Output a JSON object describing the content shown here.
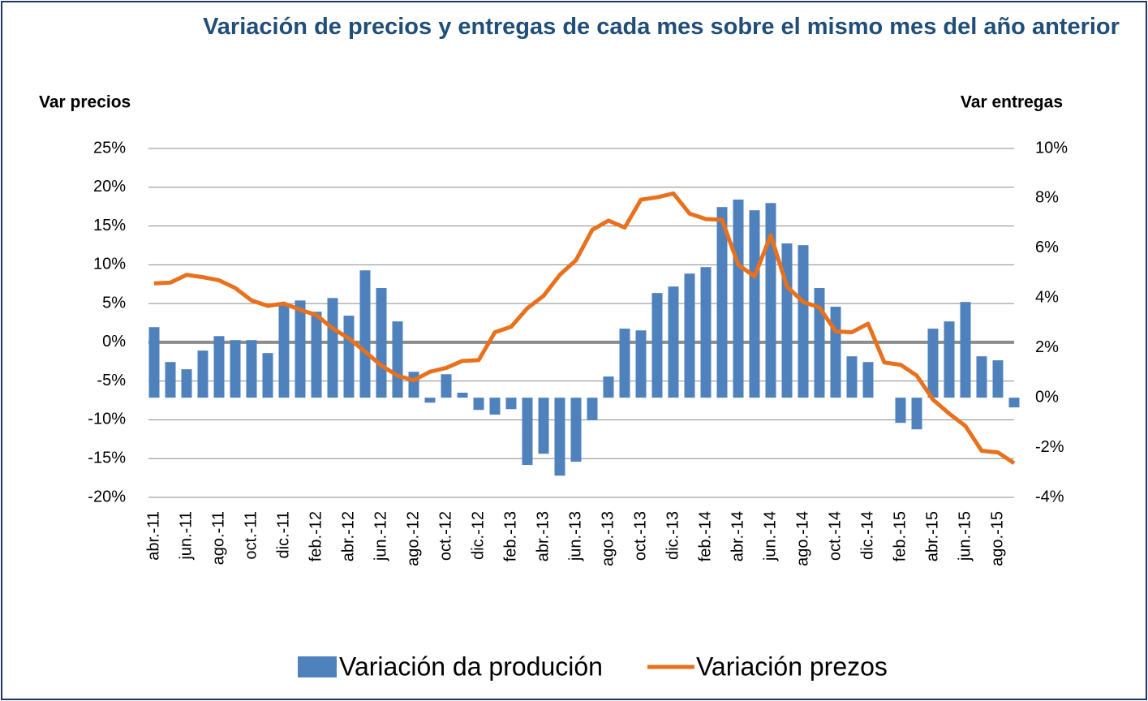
{
  "chart_data": {
    "type": "bar-line",
    "title": "Variación de precios y entregas de cada mes sobre el mismo mes del año anterior",
    "y_label": "Var precios",
    "y2_label": "Var entregas",
    "categories": [
      "abr.-11",
      null,
      "jun.-11",
      null,
      "ago.-11",
      null,
      "oct.-11",
      null,
      "dic.-11",
      null,
      "feb.-12",
      null,
      "abr.-12",
      null,
      "jun.-12",
      null,
      "ago.-12",
      null,
      "oct.-12",
      null,
      "dic.-12",
      null,
      "feb.-13",
      null,
      "abr.-13",
      null,
      "jun.-13",
      null,
      "ago.-13",
      null,
      "oct.-13",
      null,
      "dic.-13",
      null,
      "feb.-14",
      null,
      "abr.-14",
      null,
      "jun.-14",
      null,
      "ago.-14",
      null,
      "oct.-14",
      null,
      "dic.-14",
      null,
      "feb.-15",
      null,
      "abr.-15",
      null,
      "jun.-15",
      null,
      "ago.-15",
      null
    ],
    "series": [
      {
        "name": "Variación da produción",
        "type": "bar",
        "axis": "y2",
        "color": "#4f81bd",
        "values": [
          2.83,
          1.43,
          1.14,
          1.89,
          2.47,
          2.31,
          2.31,
          1.79,
          3.74,
          3.9,
          3.45,
          4.0,
          3.29,
          5.11,
          4.4,
          3.06,
          1.04,
          -0.2,
          0.94,
          0.2,
          -0.49,
          -0.68,
          -0.46,
          -2.7,
          -2.25,
          -3.13,
          -2.57,
          -0.91,
          0.85,
          2.77,
          2.7,
          4.2,
          4.46,
          4.98,
          5.24,
          7.65,
          7.95,
          7.52,
          7.81,
          6.19,
          6.12,
          4.4,
          3.65,
          1.66,
          1.43,
          0,
          -1.01,
          -1.27,
          2.77,
          3.06,
          3.84,
          1.66,
          1.5,
          -0.39
        ]
      },
      {
        "name": "Variación prezos",
        "type": "line",
        "axis": "y",
        "color": "#e8711d",
        "values": [
          7.6,
          7.7,
          8.7,
          8.4,
          8.0,
          7.0,
          5.4,
          4.7,
          5.0,
          4.2,
          3.5,
          1.8,
          0.5,
          -1.2,
          -3.0,
          -4.3,
          -4.9,
          -3.8,
          -3.3,
          -2.4,
          -2.3,
          1.3,
          2.0,
          4.4,
          6.0,
          8.7,
          10.6,
          14.5,
          15.7,
          14.8,
          18.4,
          18.7,
          19.2,
          16.6,
          15.9,
          15.8,
          10.0,
          8.5,
          13.8,
          7.2,
          5.2,
          4.5,
          1.4,
          1.3,
          2.4,
          -2.6,
          -2.9,
          -4.3,
          -7.4,
          -9.2,
          -10.8,
          -14.0,
          -14.2,
          -15.6
        ]
      }
    ],
    "ylim": [
      -20,
      25
    ],
    "yticks": [
      {
        "value": -20,
        "label": "-20%"
      },
      {
        "value": -15,
        "label": "-15%"
      },
      {
        "value": -10,
        "label": "-10%"
      },
      {
        "value": -5,
        "label": "-5%"
      },
      {
        "value": 0,
        "label": "0%"
      },
      {
        "value": 5,
        "label": "5%"
      },
      {
        "value": 10,
        "label": "10%"
      },
      {
        "value": 15,
        "label": "15%"
      },
      {
        "value": 20,
        "label": "20%"
      },
      {
        "value": 25,
        "label": "25%"
      }
    ],
    "y2lim": [
      -4,
      10
    ],
    "y2ticks": [
      {
        "value": -4,
        "label": "-4%"
      },
      {
        "value": -2,
        "label": "-2%"
      },
      {
        "value": 0,
        "label": "0%"
      },
      {
        "value": 2,
        "label": "2%"
      },
      {
        "value": 4,
        "label": "4%"
      },
      {
        "value": 6,
        "label": "6%"
      },
      {
        "value": 8,
        "label": "8%"
      },
      {
        "value": 10,
        "label": "10%"
      }
    ],
    "grid": true,
    "legend": "bottom"
  }
}
